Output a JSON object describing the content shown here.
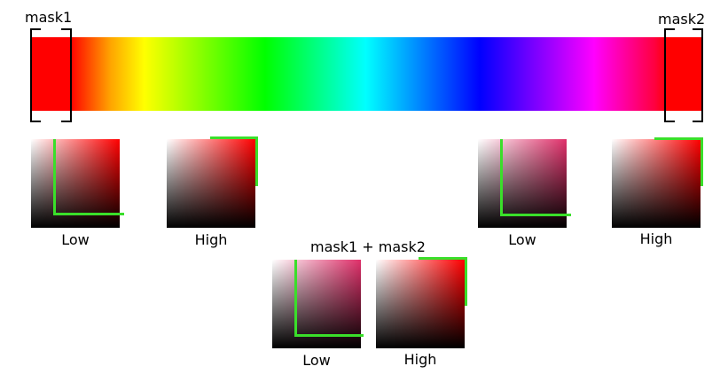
{
  "masks": {
    "mask1_label": "mask1",
    "mask2_label": "mask2",
    "combined_label": "mask1 + mask2"
  },
  "swatch_labels": {
    "mask1_low": "Low",
    "mask1_high": "High",
    "mask2_low": "Low",
    "mask2_high": "High",
    "combined_low": "Low",
    "combined_high": "High"
  },
  "colors": {
    "hue_red": "#ff0000",
    "hue_pink": "#e0306a",
    "selection_green": "#3adf2a"
  }
}
